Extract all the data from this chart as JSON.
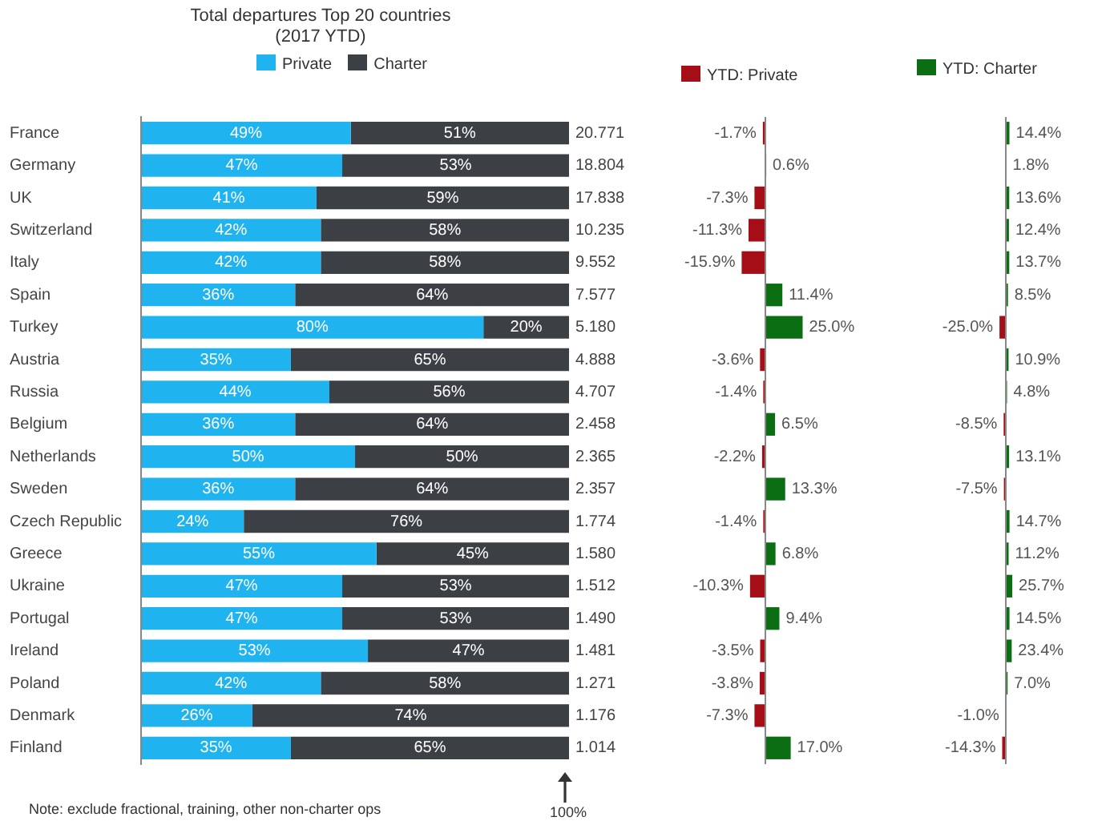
{
  "chart_data": [
    {
      "type": "bar",
      "title": "Total departures Top 20 countries\n(2017 YTD)",
      "orientation": "horizontal",
      "stacked": true,
      "legend": "top",
      "tick_labels": "y",
      "xlim": [
        0,
        100
      ],
      "categories": [
        "France",
        "Germany",
        "UK",
        "Switzerland",
        "Italy",
        "Spain",
        "Turkey",
        "Austria",
        "Russia",
        "Belgium",
        "Netherlands",
        "Sweden",
        "Czech Republic",
        "Greece",
        "Ukraine",
        "Portugal",
        "Ireland",
        "Poland",
        "Denmark",
        "Finland"
      ],
      "series": [
        {
          "name": "Private",
          "color": "#1fb4ef",
          "values": [
            49,
            47,
            41,
            42,
            42,
            36,
            80,
            35,
            44,
            36,
            50,
            36,
            24,
            55,
            47,
            47,
            53,
            42,
            26,
            35
          ],
          "value_labels": [
            "49%",
            "47%",
            "41%",
            "42%",
            "42%",
            "36%",
            "80%",
            "35%",
            "44%",
            "36%",
            "50%",
            "36%",
            "24%",
            "55%",
            "47%",
            "47%",
            "53%",
            "42%",
            "26%",
            "35%"
          ]
        },
        {
          "name": "Charter",
          "color": "#3c4044",
          "values": [
            51,
            53,
            59,
            58,
            58,
            64,
            20,
            65,
            56,
            64,
            50,
            64,
            76,
            45,
            53,
            53,
            47,
            58,
            74,
            65
          ],
          "value_labels": [
            "51%",
            "53%",
            "59%",
            "58%",
            "58%",
            "64%",
            "20%",
            "65%",
            "56%",
            "64%",
            "50%",
            "64%",
            "76%",
            "45%",
            "53%",
            "53%",
            "47%",
            "58%",
            "74%",
            "65%"
          ]
        }
      ],
      "annotations": [
        "20.771",
        "18.804",
        "17.838",
        "10.235",
        "9.552",
        "7.577",
        "5.180",
        "4.888",
        "4.707",
        "2.458",
        "2.365",
        "2.357",
        "1.774",
        "1.580",
        "1.512",
        "1.490",
        "1.481",
        "1.271",
        "1.176",
        "1.014",
        "Note: exclude fractional, training, other non-charter ops",
        "100%"
      ]
    },
    {
      "type": "bar",
      "orientation": "horizontal",
      "legend": "top",
      "tick_labels": false,
      "categories": [
        null,
        null,
        null,
        null,
        null,
        null,
        null,
        null,
        null,
        null,
        null,
        null,
        null,
        null,
        null,
        null,
        null,
        null,
        null,
        null
      ],
      "series": [
        {
          "name": "YTD: Private",
          "color": "#a50e16",
          "colors": [
            "#a50e16",
            "#0b6e12",
            "#a50e16",
            "#a50e16",
            "#a50e16",
            "#0b6e12",
            "#0b6e12",
            "#a50e16",
            "#a50e16",
            "#0b6e12",
            "#a50e16",
            "#0b6e12",
            "#a50e16",
            "#0b6e12",
            "#a50e16",
            "#0b6e12",
            "#a50e16",
            "#a50e16",
            "#a50e16",
            "#0b6e12"
          ],
          "values": [
            -1.7,
            0.6,
            -7.3,
            -11.3,
            -15.9,
            11.4,
            25.0,
            -3.6,
            -1.4,
            6.5,
            -2.2,
            13.3,
            -1.4,
            6.8,
            -10.3,
            9.4,
            -3.5,
            -3.8,
            -7.3,
            17.0
          ],
          "value_labels": [
            "-1.7%",
            "0.6%",
            "-7.3%",
            "-11.3%",
            "-15.9%",
            "11.4%",
            "25.0%",
            "-3.6%",
            "-1.4%",
            "6.5%",
            "-2.2%",
            "13.3%",
            "-1.4%",
            "6.8%",
            "-10.3%",
            "9.4%",
            "-3.5%",
            "-3.8%",
            "-7.3%",
            "17.0%"
          ]
        }
      ]
    },
    {
      "type": "bar",
      "orientation": "horizontal",
      "legend": "top",
      "tick_labels": false,
      "categories": [
        null,
        null,
        null,
        null,
        null,
        null,
        null,
        null,
        null,
        null,
        null,
        null,
        null,
        null,
        null,
        null,
        null,
        null,
        null,
        null
      ],
      "series": [
        {
          "name": "YTD: Charter",
          "color": "#0b6e12",
          "colors": [
            "#0b6e12",
            "#0b6e12",
            "#0b6e12",
            "#0b6e12",
            "#0b6e12",
            "#0b6e12",
            "#a50e16",
            "#0b6e12",
            "#0b6e12",
            "#a50e16",
            "#0b6e12",
            "#a50e16",
            "#0b6e12",
            "#0b6e12",
            "#0b6e12",
            "#0b6e12",
            "#0b6e12",
            "#0b6e12",
            "#a50e16",
            "#a50e16"
          ],
          "values": [
            14.4,
            1.8,
            13.6,
            12.4,
            13.7,
            8.5,
            -25.0,
            10.9,
            4.8,
            -8.5,
            13.1,
            -7.5,
            14.7,
            11.2,
            25.7,
            14.5,
            23.4,
            7.0,
            -1.0,
            -14.3
          ],
          "value_labels": [
            "14.4%",
            "1.8%",
            "13.6%",
            "12.4%",
            "13.7%",
            "8.5%",
            "-25.0%",
            "10.9%",
            "4.8%",
            "-8.5%",
            "13.1%",
            "-7.5%",
            "14.7%",
            "11.2%",
            "25.7%",
            "14.5%",
            "23.4%",
            "7.0%",
            "-1.0%",
            "-14.3%"
          ]
        }
      ]
    }
  ]
}
